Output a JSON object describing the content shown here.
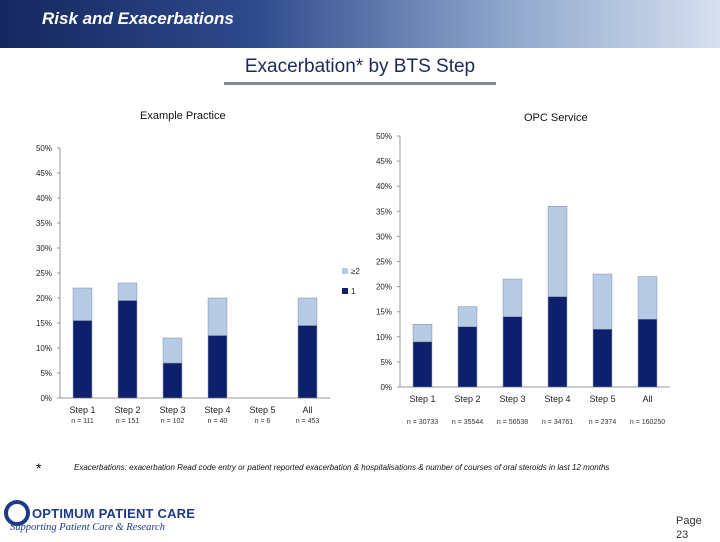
{
  "header": {
    "title": "Risk and Exacerbations"
  },
  "slide": {
    "title": "Exacerbation* by BTS Step"
  },
  "footnote": {
    "marker": "*",
    "text": "Exacerbations: exacerbation Read code entry or patient reported exacerbation & hospitalisations & number of courses of oral steroids in last 12 months"
  },
  "logo": {
    "name": "OPTIMUM PATIENT CARE",
    "tagline": "Supporting Patient Care & Research"
  },
  "page": {
    "label": "Page",
    "number": "23"
  },
  "colors": {
    "dark": "#0e1f6b",
    "light": "#b8cbe4"
  },
  "chart_data": [
    {
      "type": "bar",
      "stacked": true,
      "title": "Example Practice",
      "categories": [
        "Step 1",
        "Step 2",
        "Step 3",
        "Step 4",
        "Step 5",
        "All"
      ],
      "n_labels": [
        "n = 111",
        "n = 151",
        "n = 102",
        "n = 40",
        "n = 6",
        "n = 453"
      ],
      "ylim": [
        0,
        50
      ],
      "yticks": [
        "0%",
        "5%",
        "10%",
        "15%",
        "20%",
        "25%",
        "30%",
        "35%",
        "40%",
        "45%",
        "50%"
      ],
      "series": [
        {
          "name": "1",
          "values": [
            15.5,
            19.5,
            7,
            12.5,
            0,
            14.5
          ]
        },
        {
          "name": "≥2",
          "values": [
            6.5,
            3.5,
            5,
            7.5,
            0,
            5.5
          ]
        }
      ],
      "legend": "right"
    },
    {
      "type": "bar",
      "stacked": true,
      "title": "OPC Service",
      "categories": [
        "Step 1",
        "Step 2",
        "Step 3",
        "Step 4",
        "Step 5",
        "All"
      ],
      "n_labels": [
        "n = 30733",
        "n = 35544",
        "n = 56538",
        "n = 34761",
        "n = 2374",
        "n = 160250"
      ],
      "ylim": [
        0,
        50
      ],
      "yticks": [
        "0%",
        "5%",
        "10%",
        "15%",
        "20%",
        "25%",
        "30%",
        "35%",
        "40%",
        "45%",
        "50%"
      ],
      "series": [
        {
          "name": "1",
          "values": [
            9,
            12,
            14,
            18,
            11.5,
            13.5
          ]
        },
        {
          "name": "≥2",
          "values": [
            3.5,
            4,
            7.5,
            18,
            11,
            8.5
          ]
        }
      ]
    }
  ]
}
